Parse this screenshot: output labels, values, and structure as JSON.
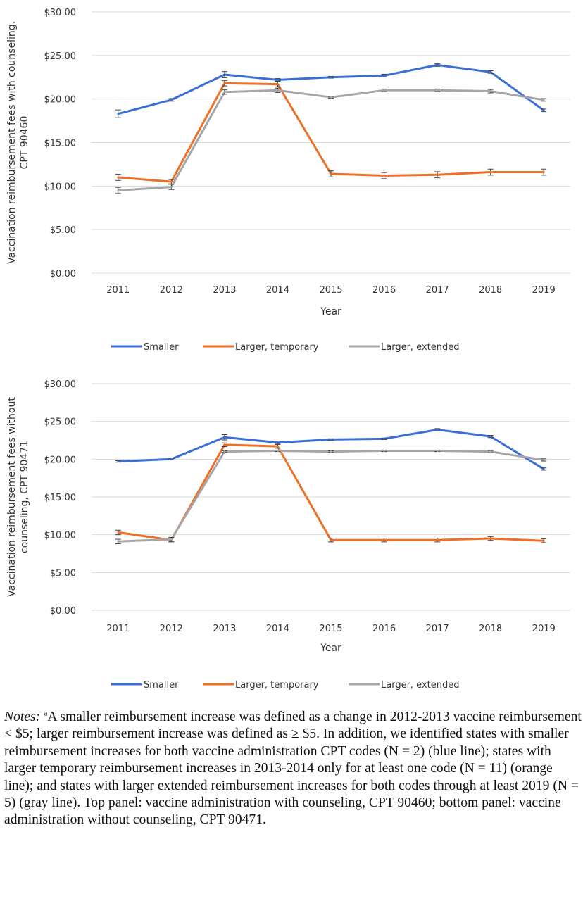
{
  "colors": {
    "smaller": "#3a6fd8",
    "temporary": "#ec7028",
    "extended": "#a6a6a6",
    "grid": "#d9d9d9"
  },
  "chart_data": [
    {
      "type": "line",
      "panel": "top",
      "title": "",
      "xlabel": "Year",
      "ylabel": "Vaccination reimbursement fees with counseling, CPT 90460",
      "ylabel_lines": [
        "Vaccination reimbursement fees with counseling,",
        "CPT 90460"
      ],
      "x": [
        "2011",
        "2012",
        "2013",
        "2014",
        "2015",
        "2016",
        "2017",
        "2018",
        "2019"
      ],
      "yticks": [
        "$0.00",
        "$5.00",
        "$10.00",
        "$15.00",
        "$20.00",
        "$25.00",
        "$30.00"
      ],
      "ylim": [
        0,
        30
      ],
      "grid": true,
      "legend_position": "bottom",
      "series": [
        {
          "name": "Smaller",
          "values": [
            18.3,
            19.9,
            22.8,
            22.2,
            22.5,
            22.7,
            23.9,
            23.1,
            18.7
          ],
          "errors": [
            0.45,
            0.15,
            0.35,
            0.15,
            0.1,
            0.15,
            0.15,
            0.15,
            0.15
          ]
        },
        {
          "name": "Larger, temporary",
          "values": [
            11.0,
            10.5,
            21.8,
            21.7,
            11.4,
            11.2,
            11.3,
            11.6,
            11.6
          ],
          "errors": [
            0.35,
            0.25,
            0.3,
            0.3,
            0.35,
            0.35,
            0.35,
            0.35,
            0.35
          ]
        },
        {
          "name": "Larger, extended",
          "values": [
            9.5,
            9.9,
            20.8,
            21.0,
            20.2,
            21.0,
            21.0,
            20.9,
            19.9
          ],
          "errors": [
            0.35,
            0.3,
            0.25,
            0.25,
            0.1,
            0.15,
            0.15,
            0.2,
            0.15
          ]
        }
      ]
    },
    {
      "type": "line",
      "panel": "bottom",
      "title": "",
      "xlabel": "Year",
      "ylabel": "Vaccination reimbursement fees without counseling, CPT 90471",
      "ylabel_lines": [
        "Vaccination reimbursement fees without",
        "counseling, CPT 90471"
      ],
      "x": [
        "2011",
        "2012",
        "2013",
        "2014",
        "2015",
        "2016",
        "2017",
        "2018",
        "2019"
      ],
      "yticks": [
        "$0.00",
        "$5.00",
        "$10.00",
        "$15.00",
        "$20.00",
        "$25.00",
        "$30.00"
      ],
      "ylim": [
        0,
        30
      ],
      "grid": true,
      "legend_position": "bottom",
      "series": [
        {
          "name": "Smaller",
          "values": [
            19.7,
            20.0,
            22.9,
            22.2,
            22.6,
            22.7,
            23.9,
            23.0,
            18.7
          ],
          "errors": [
            0.1,
            0.1,
            0.35,
            0.2,
            0.1,
            0.1,
            0.15,
            0.15,
            0.15
          ]
        },
        {
          "name": "Larger, temporary",
          "values": [
            10.3,
            9.3,
            21.9,
            21.7,
            9.3,
            9.3,
            9.3,
            9.5,
            9.2
          ],
          "errors": [
            0.3,
            0.25,
            0.25,
            0.25,
            0.25,
            0.25,
            0.25,
            0.25,
            0.25
          ]
        },
        {
          "name": "Larger, extended",
          "values": [
            9.1,
            9.4,
            21.0,
            21.1,
            21.0,
            21.1,
            21.1,
            21.0,
            19.9
          ],
          "errors": [
            0.3,
            0.25,
            0.1,
            0.1,
            0.1,
            0.1,
            0.1,
            0.15,
            0.15
          ]
        }
      ]
    }
  ],
  "notes": {
    "label": "Notes:",
    "superscript": "a",
    "text": "A smaller reimbursement increase was defined as a change in 2012-2013 vaccine reimbursement < $5; larger reimbursement increase was defined as ≥ $5. In addition, we identified states with smaller reimbursement increases for both vaccine administration CPT codes (N = 2) (blue line); states with larger temporary reimbursement increases in 2013-2014 only for at least one code (N = 11) (orange line); and states with larger extended reimbursement increases for both codes through at least 2019 (N = 5) (gray line). Top panel: vaccine administration with counseling, CPT 90460; bottom panel: vaccine administration without counseling, CPT 90471."
  }
}
